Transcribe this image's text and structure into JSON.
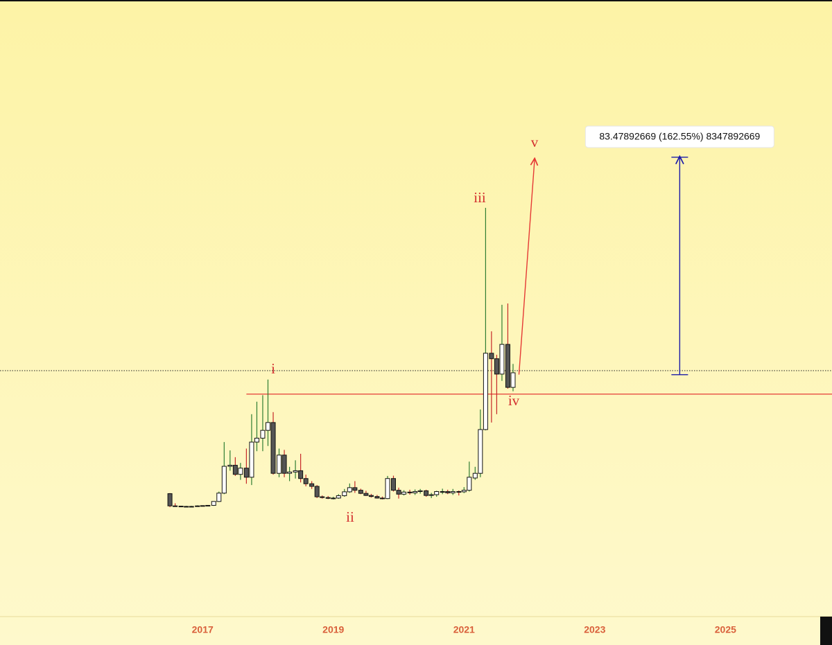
{
  "chart_data": {
    "type": "candlestick",
    "x": [
      2016.5,
      2016.58,
      2016.67,
      2016.75,
      2016.83,
      2016.92,
      2017.0,
      2017.08,
      2017.17,
      2017.25,
      2017.33,
      2017.42,
      2017.5,
      2017.58,
      2017.67,
      2017.75,
      2017.83,
      2017.92,
      2018.0,
      2018.08,
      2018.17,
      2018.25,
      2018.33,
      2018.42,
      2018.5,
      2018.58,
      2018.67,
      2018.75,
      2018.83,
      2018.92,
      2019.0,
      2019.08,
      2019.17,
      2019.25,
      2019.33,
      2019.42,
      2019.5,
      2019.58,
      2019.67,
      2019.75,
      2019.83,
      2019.92,
      2020.0,
      2020.08,
      2020.17,
      2020.25,
      2020.33,
      2020.42,
      2020.5,
      2020.58,
      2020.67,
      2020.75,
      2020.83,
      2020.92,
      2021.0,
      2021.08,
      2021.17,
      2021.25,
      2021.33,
      2021.42,
      2021.5,
      2021.58,
      2021.67,
      2021.75
    ],
    "open": [
      5.7,
      1.0,
      0.9,
      0.8,
      0.8,
      0.8,
      1.0,
      1.1,
      1.2,
      2.7,
      5.9,
      16.2,
      16.6,
      13.1,
      15.5,
      12.0,
      25.5,
      27.0,
      30.0,
      33.0,
      13.5,
      20.5,
      13.5,
      14.0,
      14.5,
      11.5,
      9.5,
      8.5,
      4.5,
      4.2,
      3.9,
      4.0,
      4.9,
      6.4,
      8.0,
      7.0,
      5.8,
      5.0,
      4.6,
      4.0,
      3.8,
      11.5,
      7.0,
      5.5,
      6.3,
      6.0,
      6.5,
      6.8,
      5.0,
      5.3,
      6.5,
      6.5,
      6.0,
      6.5,
      6.4,
      7.0,
      11.7,
      13.5,
      30.3,
      59.6,
      57.5,
      51.6,
      63.0,
      46.5
    ],
    "high": [
      5.9,
      2.0,
      1.0,
      1.0,
      1.0,
      1.2,
      1.2,
      1.3,
      2.8,
      6.5,
      25.5,
      22.3,
      19.7,
      17.5,
      23.0,
      36.2,
      41.0,
      43.5,
      49.5,
      37.0,
      23.0,
      22.5,
      16.0,
      18.5,
      21.0,
      13.0,
      10.5,
      9.0,
      5.0,
      4.8,
      4.5,
      5.5,
      7.5,
      9.6,
      10.5,
      7.6,
      6.8,
      5.6,
      5.2,
      4.6,
      12.5,
      12.6,
      8.0,
      7.0,
      7.2,
      7.3,
      7.5,
      7.2,
      6.0,
      6.8,
      7.6,
      7.2,
      7.5,
      6.9,
      8.2,
      18.0,
      16.0,
      38.0,
      115.4,
      68.0,
      59.0,
      78.2,
      78.7,
      55.5
    ],
    "low": [
      0.5,
      0.8,
      0.8,
      0.7,
      0.7,
      0.7,
      0.9,
      1.0,
      1.0,
      2.5,
      5.5,
      14.5,
      12.5,
      11.0,
      9.5,
      9.0,
      22.0,
      22.0,
      24.0,
      13.0,
      12.0,
      12.0,
      10.5,
      11.5,
      10.0,
      8.5,
      7.5,
      4.0,
      3.8,
      3.6,
      3.5,
      3.7,
      4.5,
      6.0,
      6.0,
      5.5,
      4.8,
      4.2,
      3.8,
      3.5,
      3.6,
      6.5,
      3.8,
      5.0,
      5.3,
      5.2,
      5.7,
      4.5,
      4.0,
      4.5,
      5.5,
      5.5,
      5.2,
      5.0,
      5.9,
      6.5,
      11.0,
      12.0,
      30.0,
      33.0,
      36.2,
      49.0,
      46.0,
      45.0
    ],
    "close": [
      1.0,
      0.9,
      0.8,
      0.8,
      0.8,
      1.0,
      1.1,
      1.2,
      2.7,
      5.9,
      16.2,
      16.6,
      13.1,
      15.5,
      12.0,
      25.5,
      27.0,
      30.0,
      33.0,
      13.5,
      20.5,
      13.5,
      14.0,
      14.5,
      11.5,
      9.5,
      8.5,
      4.5,
      4.2,
      3.9,
      4.0,
      4.9,
      6.4,
      8.0,
      7.0,
      5.8,
      5.0,
      4.6,
      4.0,
      3.8,
      11.5,
      7.0,
      5.5,
      6.3,
      6.0,
      6.5,
      6.8,
      5.0,
      5.3,
      6.5,
      6.5,
      6.0,
      6.5,
      6.4,
      7.0,
      12.0,
      13.5,
      30.3,
      59.6,
      57.5,
      51.6,
      63.0,
      46.5,
      52.1
    ],
    "up_color": "#ffffff",
    "down_color": "#555555",
    "border_color": "#111111",
    "up_wick_color": "#2e7d32",
    "down_wick_color": "#c62828",
    "xlim": [
      2013.9,
      2026.63
    ],
    "xticks": [
      2017,
      2019,
      2021,
      2023,
      2025
    ],
    "ylim": [
      -41.5,
      195.2
    ],
    "annotations": [
      "i",
      "ii",
      "iii",
      "iv",
      "v"
    ],
    "hline": {
      "value": 43.9,
      "x_start": 2017.67,
      "color": "#e53935"
    },
    "price_line": 52.9,
    "projection": {
      "x": [
        2021.84,
        2022.08
      ],
      "y": [
        51.4,
        134.1
      ],
      "color": "#e53935"
    },
    "measure": {
      "x": 2024.3,
      "from": 51.36,
      "to": 134.84,
      "color": "#1a1aa8",
      "label": "83.47892669 (162.55%) 8347892669"
    }
  }
}
